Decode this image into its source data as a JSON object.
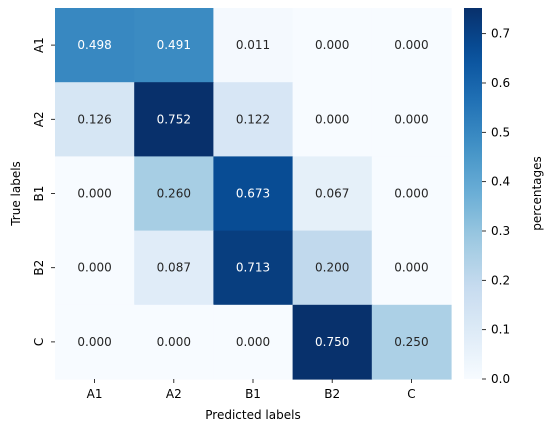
{
  "chart_data": {
    "type": "heatmap",
    "title": "",
    "xlabel": "Predicted labels",
    "ylabel": "True labels",
    "x_categories": [
      "A1",
      "A2",
      "B1",
      "B2",
      "C"
    ],
    "y_categories": [
      "A1",
      "A2",
      "B1",
      "B2",
      "C"
    ],
    "values": [
      [
        0.498,
        0.491,
        0.011,
        0.0,
        0.0
      ],
      [
        0.126,
        0.752,
        0.122,
        0.0,
        0.0
      ],
      [
        0.0,
        0.26,
        0.673,
        0.067,
        0.0
      ],
      [
        0.0,
        0.087,
        0.713,
        0.2,
        0.0
      ],
      [
        0.0,
        0.0,
        0.0,
        0.75,
        0.25
      ]
    ],
    "annotations_format": "0.000",
    "colormap": "Blues",
    "colorbar": {
      "label": "percentages",
      "range": [
        0.0,
        0.752
      ],
      "ticks": [
        0.0,
        0.1,
        0.2,
        0.3,
        0.4,
        0.5,
        0.6,
        0.7
      ],
      "tick_labels": [
        "0.0",
        "0.1",
        "0.2",
        "0.3",
        "0.4",
        "0.5",
        "0.6",
        "0.7"
      ]
    },
    "grid": false
  }
}
